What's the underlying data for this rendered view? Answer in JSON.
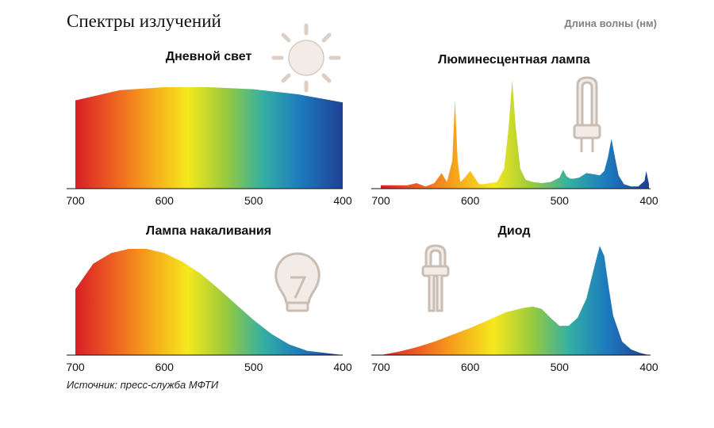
{
  "header": {
    "title": "Спектры излучений",
    "unit_label": "Длина волны (нм)"
  },
  "footer": {
    "source": "Источник: пресс-служба МФТИ"
  },
  "chart_data": [
    {
      "type": "area",
      "title": "Дневной свет",
      "icon": "sun-icon",
      "xlim": [
        700,
        400
      ],
      "x_ticks": [
        "700",
        "600",
        "500",
        "400"
      ],
      "ylim": [
        0,
        1
      ],
      "x": [
        700,
        650,
        600,
        550,
        500,
        450,
        400
      ],
      "y": [
        0.87,
        0.97,
        1.0,
        1.0,
        0.98,
        0.93,
        0.85
      ]
    },
    {
      "type": "area",
      "title": "Люминесцентная лампа",
      "icon": "fluorescent-lamp-icon",
      "xlim": [
        700,
        400
      ],
      "x_ticks": [
        "700",
        "600",
        "500",
        "400"
      ],
      "ylim": [
        0,
        1
      ],
      "x": [
        700,
        670,
        660,
        650,
        640,
        632,
        626,
        620,
        617,
        614,
        611,
        606,
        600,
        595,
        590,
        585,
        578,
        570,
        562,
        557,
        553,
        549,
        544,
        538,
        530,
        520,
        510,
        500,
        496,
        492,
        488,
        484,
        478,
        470,
        462,
        455,
        450,
        446,
        442,
        438,
        434,
        428,
        420,
        412,
        405,
        403,
        400
      ],
      "y": [
        0.03,
        0.03,
        0.05,
        0.02,
        0.05,
        0.14,
        0.06,
        0.25,
        0.8,
        0.25,
        0.06,
        0.1,
        0.16,
        0.1,
        0.04,
        0.04,
        0.05,
        0.06,
        0.18,
        0.55,
        0.98,
        0.55,
        0.18,
        0.08,
        0.06,
        0.05,
        0.06,
        0.1,
        0.17,
        0.11,
        0.09,
        0.09,
        0.1,
        0.14,
        0.13,
        0.12,
        0.16,
        0.28,
        0.45,
        0.28,
        0.12,
        0.04,
        0.02,
        0.02,
        0.07,
        0.16,
        0.04
      ]
    },
    {
      "type": "area",
      "title": "Лампа накаливания",
      "icon": "light-bulb-icon",
      "xlim": [
        700,
        400
      ],
      "x_ticks": [
        "700",
        "600",
        "500",
        "400"
      ],
      "ylim": [
        0,
        1
      ],
      "x": [
        700,
        680,
        660,
        640,
        620,
        600,
        580,
        560,
        540,
        520,
        500,
        480,
        460,
        440,
        420,
        400
      ],
      "y": [
        0.62,
        0.86,
        0.96,
        1.0,
        1.0,
        0.96,
        0.88,
        0.77,
        0.63,
        0.48,
        0.33,
        0.2,
        0.1,
        0.04,
        0.02,
        0.0
      ]
    },
    {
      "type": "area",
      "title": "Диод",
      "icon": "led-icon",
      "xlim": [
        700,
        400
      ],
      "x_ticks": [
        "700",
        "600",
        "500",
        "400"
      ],
      "ylim": [
        0,
        1
      ],
      "x": [
        700,
        680,
        660,
        640,
        620,
        600,
        580,
        560,
        540,
        530,
        520,
        510,
        500,
        490,
        480,
        470,
        460,
        455,
        450,
        445,
        440,
        430,
        420,
        410,
        400
      ],
      "y": [
        0.0,
        0.03,
        0.07,
        0.12,
        0.18,
        0.24,
        0.31,
        0.38,
        0.42,
        0.43,
        0.41,
        0.33,
        0.26,
        0.26,
        0.33,
        0.5,
        0.82,
        0.97,
        0.88,
        0.6,
        0.35,
        0.12,
        0.05,
        0.02,
        0.0
      ]
    }
  ]
}
